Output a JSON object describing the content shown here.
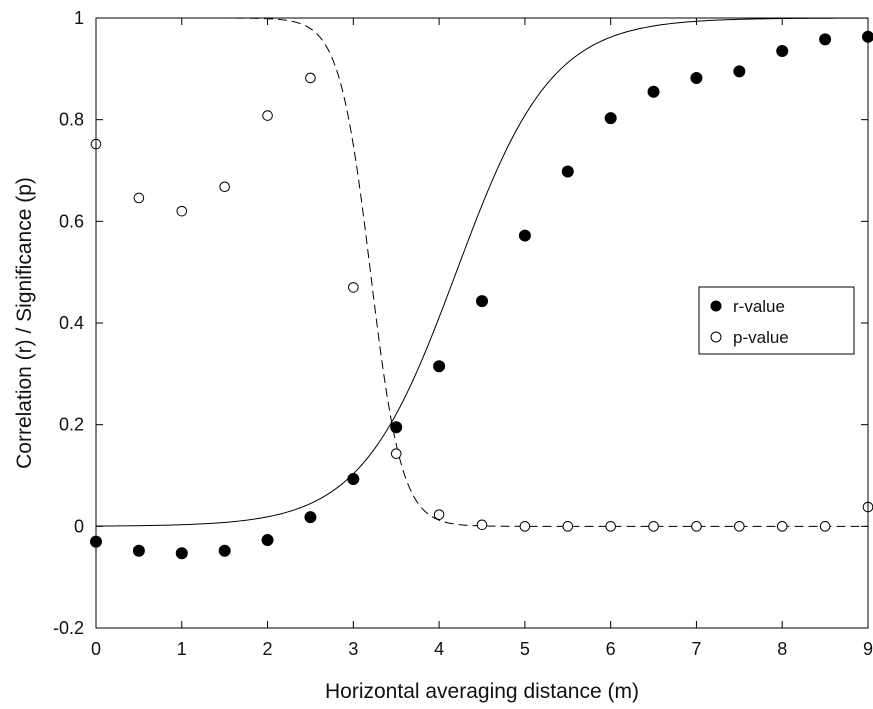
{
  "chart_data": {
    "type": "scatter",
    "title": "",
    "xlabel": "Horizontal averaging distance (m)",
    "ylabel": "Correlation (r) / Significance (p)",
    "xlim": [
      0,
      9
    ],
    "ylim": [
      -0.2,
      1
    ],
    "xticks": [
      0,
      1,
      2,
      3,
      4,
      5,
      6,
      7,
      8,
      9
    ],
    "yticks": [
      -0.2,
      0,
      0.2,
      0.4,
      0.6,
      0.8,
      1
    ],
    "ytick_labels": [
      "-0.2",
      "0",
      "0.2",
      "0.4",
      "0.6",
      "0.8",
      "1"
    ],
    "xtick_labels": [
      "0",
      "1",
      "2",
      "3",
      "4",
      "5",
      "6",
      "7",
      "8",
      "9"
    ],
    "grid": false,
    "legend_position": "right",
    "series": [
      {
        "name": "r-value",
        "marker": "filled-circle",
        "color": "#000000",
        "x": [
          0,
          0.5,
          1,
          1.5,
          2,
          2.5,
          3,
          3.5,
          4,
          4.5,
          5,
          5.5,
          6,
          6.5,
          7,
          7.5,
          8,
          8.5,
          9
        ],
        "y": [
          -0.03,
          -0.048,
          -0.053,
          -0.048,
          -0.027,
          0.018,
          0.093,
          0.195,
          0.315,
          0.443,
          0.572,
          0.698,
          0.803,
          0.855,
          0.882,
          0.895,
          0.935,
          0.958,
          0.963
        ],
        "fit": {
          "style": "solid",
          "x_mid": 4.2,
          "k": 1.8,
          "low": 0,
          "high": 1
        }
      },
      {
        "name": "p-value",
        "marker": "open-circle",
        "color": "#000000",
        "x": [
          0,
          0.5,
          1,
          1.5,
          2,
          2.5,
          3,
          3.5,
          4,
          4.5,
          5,
          5.5,
          6,
          6.5,
          7,
          7.5,
          8,
          8.5,
          9
        ],
        "y": [
          0.752,
          0.646,
          0.62,
          0.668,
          0.808,
          0.882,
          0.47,
          0.143,
          0.023,
          0.003,
          0.0,
          0.0,
          0.0,
          0.0,
          0.0,
          0.0,
          0.0,
          0.0,
          0.038
        ],
        "fit": {
          "style": "dashed",
          "x_mid": 3.2,
          "k": -5.5,
          "low": 0,
          "high": 1
        }
      }
    ]
  }
}
